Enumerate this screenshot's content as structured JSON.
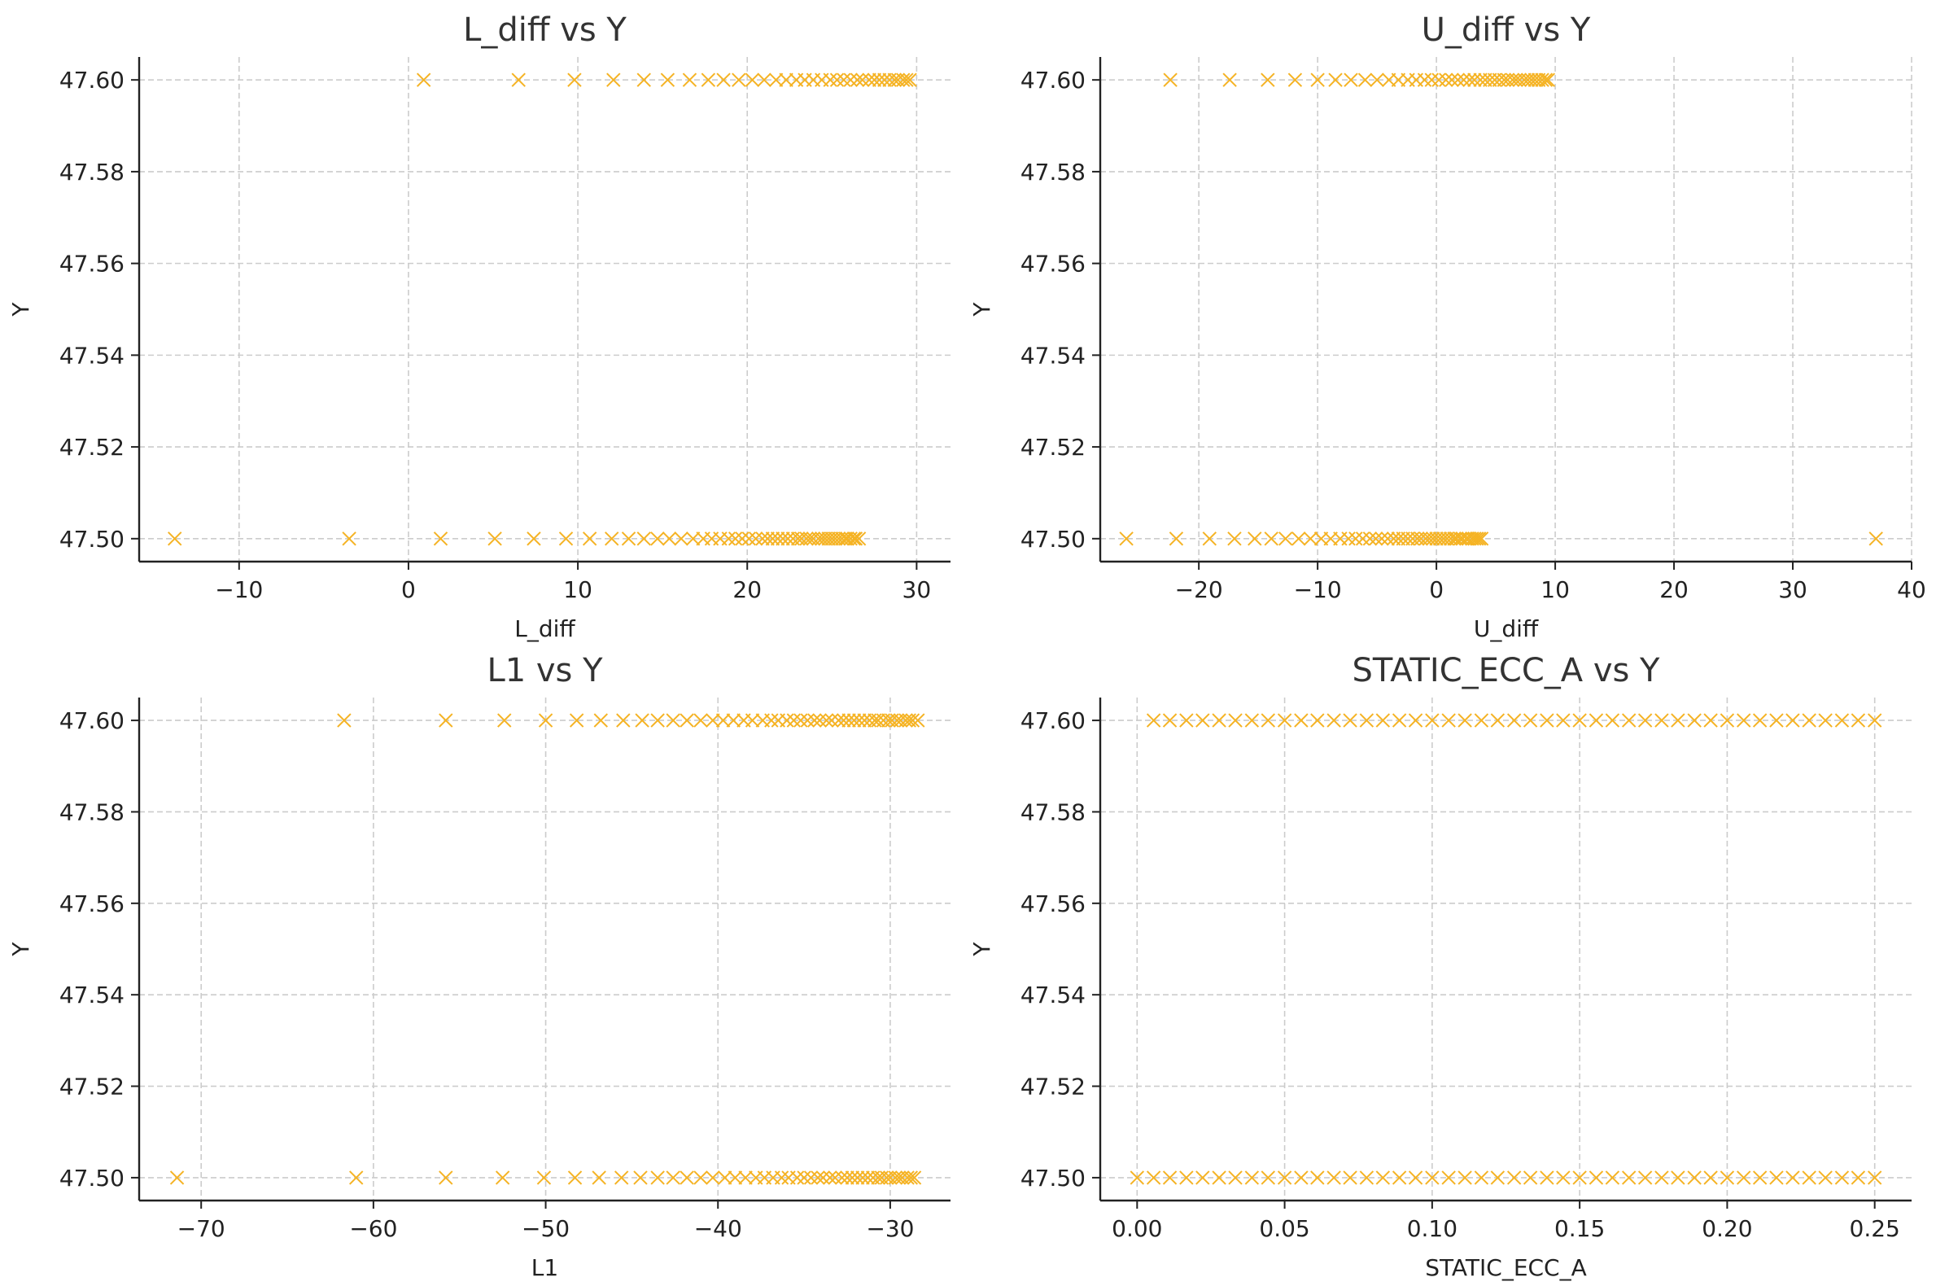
{
  "chart_data": [
    {
      "type": "scatter",
      "title": "L_diff vs Y",
      "xlabel": "L_diff",
      "ylabel": "Y",
      "xlim": [
        -15.9,
        32.0
      ],
      "ylim": [
        47.495,
        47.605
      ],
      "xticks": [
        -10,
        0,
        10,
        20,
        30
      ],
      "xtick_labels": [
        "−10",
        "0",
        "10",
        "20",
        "30"
      ],
      "yticks": [
        47.5,
        47.52,
        47.54,
        47.56,
        47.58,
        47.6
      ],
      "ytick_labels": [
        "47.50",
        "47.52",
        "47.54",
        "47.56",
        "47.58",
        "47.60"
      ],
      "grid": true,
      "marker": "x",
      "color": "#F5B324",
      "groups": [
        {
          "y": 47.5,
          "x": [
            -13.8,
            -3.5,
            1.9,
            5.1,
            7.4,
            9.3,
            10.7,
            12.0,
            13.0,
            13.9,
            14.7,
            15.4,
            16.1,
            16.8,
            17.4,
            17.9,
            18.4,
            18.9,
            19.3,
            19.7,
            20.1,
            20.5,
            20.9,
            21.2,
            21.5,
            21.8,
            22.1,
            22.4,
            22.7,
            23.0,
            23.2,
            23.5,
            23.7,
            23.9,
            24.2,
            24.4,
            24.6,
            24.8,
            25.0,
            25.2,
            25.4,
            25.6,
            25.8,
            25.9,
            26.1,
            26.3,
            26.4,
            26.6
          ]
        },
        {
          "y": 47.6,
          "x": [
            0.9,
            6.5,
            9.8,
            12.1,
            13.9,
            15.3,
            16.6,
            17.7,
            18.6,
            19.5,
            20.3,
            21.0,
            21.7,
            22.3,
            22.9,
            23.4,
            23.9,
            24.4,
            24.9,
            25.3,
            25.7,
            26.1,
            26.5,
            26.8,
            27.2,
            27.5,
            27.8,
            28.1,
            28.4,
            28.7,
            28.9,
            29.2,
            29.4,
            29.6
          ]
        }
      ]
    },
    {
      "type": "scatter",
      "title": "U_diff vs Y",
      "xlabel": "U_diff",
      "ylabel": "Y",
      "xlim": [
        -28.3,
        40.0
      ],
      "ylim": [
        47.495,
        47.605
      ],
      "xticks": [
        -20,
        -10,
        0,
        10,
        20,
        30,
        40
      ],
      "xtick_labels": [
        "−20",
        "−10",
        "0",
        "10",
        "20",
        "30",
        "40"
      ],
      "yticks": [
        47.5,
        47.52,
        47.54,
        47.56,
        47.58,
        47.6
      ],
      "ytick_labels": [
        "47.50",
        "47.52",
        "47.54",
        "47.56",
        "47.58",
        "47.60"
      ],
      "grid": true,
      "marker": "x",
      "color": "#F5B324",
      "groups": [
        {
          "y": 47.5,
          "x": [
            -26.1,
            -21.9,
            -19.1,
            -17.0,
            -15.3,
            -13.9,
            -12.7,
            -11.6,
            -10.6,
            -9.7,
            -8.9,
            -8.1,
            -7.4,
            -6.8,
            -6.2,
            -5.6,
            -5.1,
            -4.6,
            -4.1,
            -3.6,
            -3.2,
            -2.8,
            -2.4,
            -2.0,
            -1.6,
            -1.3,
            -0.9,
            -0.6,
            -0.3,
            0.0,
            0.3,
            0.6,
            0.9,
            1.2,
            1.5,
            1.7,
            2.0,
            2.2,
            2.5,
            2.7,
            3.0,
            3.2,
            3.4,
            3.6,
            3.8,
            37.0
          ]
        },
        {
          "y": 47.6,
          "x": [
            -22.4,
            -17.4,
            -14.2,
            -11.9,
            -10.0,
            -8.5,
            -7.2,
            -6.0,
            -5.0,
            -4.0,
            -3.2,
            -2.4,
            -1.7,
            -1.0,
            -0.4,
            0.2,
            0.8,
            1.3,
            1.8,
            2.3,
            2.8,
            3.2,
            3.7,
            4.1,
            4.5,
            4.9,
            5.3,
            5.7,
            6.0,
            6.4,
            6.7,
            7.0,
            7.4,
            7.7,
            8.0,
            8.3,
            8.6,
            8.9,
            9.2,
            9.4
          ]
        }
      ]
    },
    {
      "type": "scatter",
      "title": "L1 vs Y",
      "xlabel": "L1",
      "ylabel": "Y",
      "xlim": [
        -73.6,
        -26.5
      ],
      "ylim": [
        47.495,
        47.605
      ],
      "xticks": [
        -70,
        -60,
        -50,
        -40,
        -30
      ],
      "xtick_labels": [
        "−70",
        "−60",
        "−50",
        "−40",
        "−30"
      ],
      "yticks": [
        47.5,
        47.52,
        47.54,
        47.56,
        47.58,
        47.6
      ],
      "ytick_labels": [
        "47.50",
        "47.52",
        "47.54",
        "47.56",
        "47.58",
        "47.60"
      ],
      "grid": true,
      "marker": "x",
      "color": "#F5B324",
      "groups": [
        {
          "y": 47.5,
          "x": [
            -71.4,
            -61.0,
            -55.8,
            -52.5,
            -50.1,
            -48.3,
            -46.9,
            -45.6,
            -44.5,
            -43.5,
            -42.6,
            -41.8,
            -41.0,
            -40.3,
            -39.6,
            -39.0,
            -38.4,
            -37.8,
            -37.3,
            -36.8,
            -36.3,
            -35.9,
            -35.4,
            -35.0,
            -34.6,
            -34.2,
            -33.9,
            -33.5,
            -33.2,
            -32.8,
            -32.5,
            -32.2,
            -31.9,
            -31.6,
            -31.3,
            -31.0,
            -30.7,
            -30.5,
            -30.2,
            -30.0,
            -29.7,
            -29.5,
            -29.3,
            -29.0,
            -28.8,
            -28.6
          ]
        },
        {
          "y": 47.6,
          "x": [
            -61.7,
            -55.8,
            -52.4,
            -50.0,
            -48.2,
            -46.8,
            -45.5,
            -44.4,
            -43.5,
            -42.6,
            -41.8,
            -41.0,
            -40.3,
            -39.7,
            -39.1,
            -38.5,
            -38.0,
            -37.4,
            -36.9,
            -36.5,
            -36.0,
            -35.6,
            -35.2,
            -34.8,
            -34.4,
            -34.1,
            -33.7,
            -33.4,
            -33.0,
            -32.7,
            -32.4,
            -32.1,
            -31.8,
            -31.5,
            -31.2,
            -30.9,
            -30.7,
            -30.4,
            -30.1,
            -29.9,
            -29.6,
            -29.4,
            -29.1,
            -28.9,
            -28.7,
            -28.4
          ]
        }
      ]
    },
    {
      "type": "scatter",
      "title": "STATIC_ECC_A vs Y",
      "xlabel": "STATIC_ECC_A",
      "ylabel": "Y",
      "xlim": [
        -0.0125,
        0.2625
      ],
      "ylim": [
        47.495,
        47.605
      ],
      "xticks": [
        0.0,
        0.05,
        0.1,
        0.15,
        0.2,
        0.25
      ],
      "xtick_labels": [
        "0.00",
        "0.05",
        "0.10",
        "0.15",
        "0.20",
        "0.25"
      ],
      "yticks": [
        47.5,
        47.52,
        47.54,
        47.56,
        47.58,
        47.6
      ],
      "ytick_labels": [
        "47.50",
        "47.52",
        "47.54",
        "47.56",
        "47.58",
        "47.60"
      ],
      "grid": true,
      "marker": "x",
      "color": "#F5B324",
      "groups": [
        {
          "y": 47.5,
          "x": [
            0.0,
            0.0056,
            0.0111,
            0.0167,
            0.0222,
            0.0278,
            0.0333,
            0.0389,
            0.0444,
            0.05,
            0.0556,
            0.0611,
            0.0667,
            0.0722,
            0.0778,
            0.0833,
            0.0889,
            0.0944,
            0.1,
            0.1056,
            0.1111,
            0.1167,
            0.1222,
            0.1278,
            0.1333,
            0.1389,
            0.1444,
            0.15,
            0.1556,
            0.1611,
            0.1667,
            0.1722,
            0.1778,
            0.1833,
            0.1889,
            0.1944,
            0.2,
            0.2056,
            0.2111,
            0.2167,
            0.2222,
            0.2278,
            0.2333,
            0.2389,
            0.2444,
            0.25
          ]
        },
        {
          "y": 47.6,
          "x": [
            0.0056,
            0.0111,
            0.0167,
            0.0222,
            0.0278,
            0.0333,
            0.0389,
            0.0444,
            0.05,
            0.0556,
            0.0611,
            0.0667,
            0.0722,
            0.0778,
            0.0833,
            0.0889,
            0.0944,
            0.1,
            0.1056,
            0.1111,
            0.1167,
            0.1222,
            0.1278,
            0.1333,
            0.1389,
            0.1444,
            0.15,
            0.1556,
            0.1611,
            0.1667,
            0.1722,
            0.1778,
            0.1833,
            0.1889,
            0.1944,
            0.2,
            0.2056,
            0.2111,
            0.2167,
            0.2222,
            0.2278,
            0.2333,
            0.2389,
            0.2444,
            0.25
          ]
        }
      ]
    }
  ]
}
